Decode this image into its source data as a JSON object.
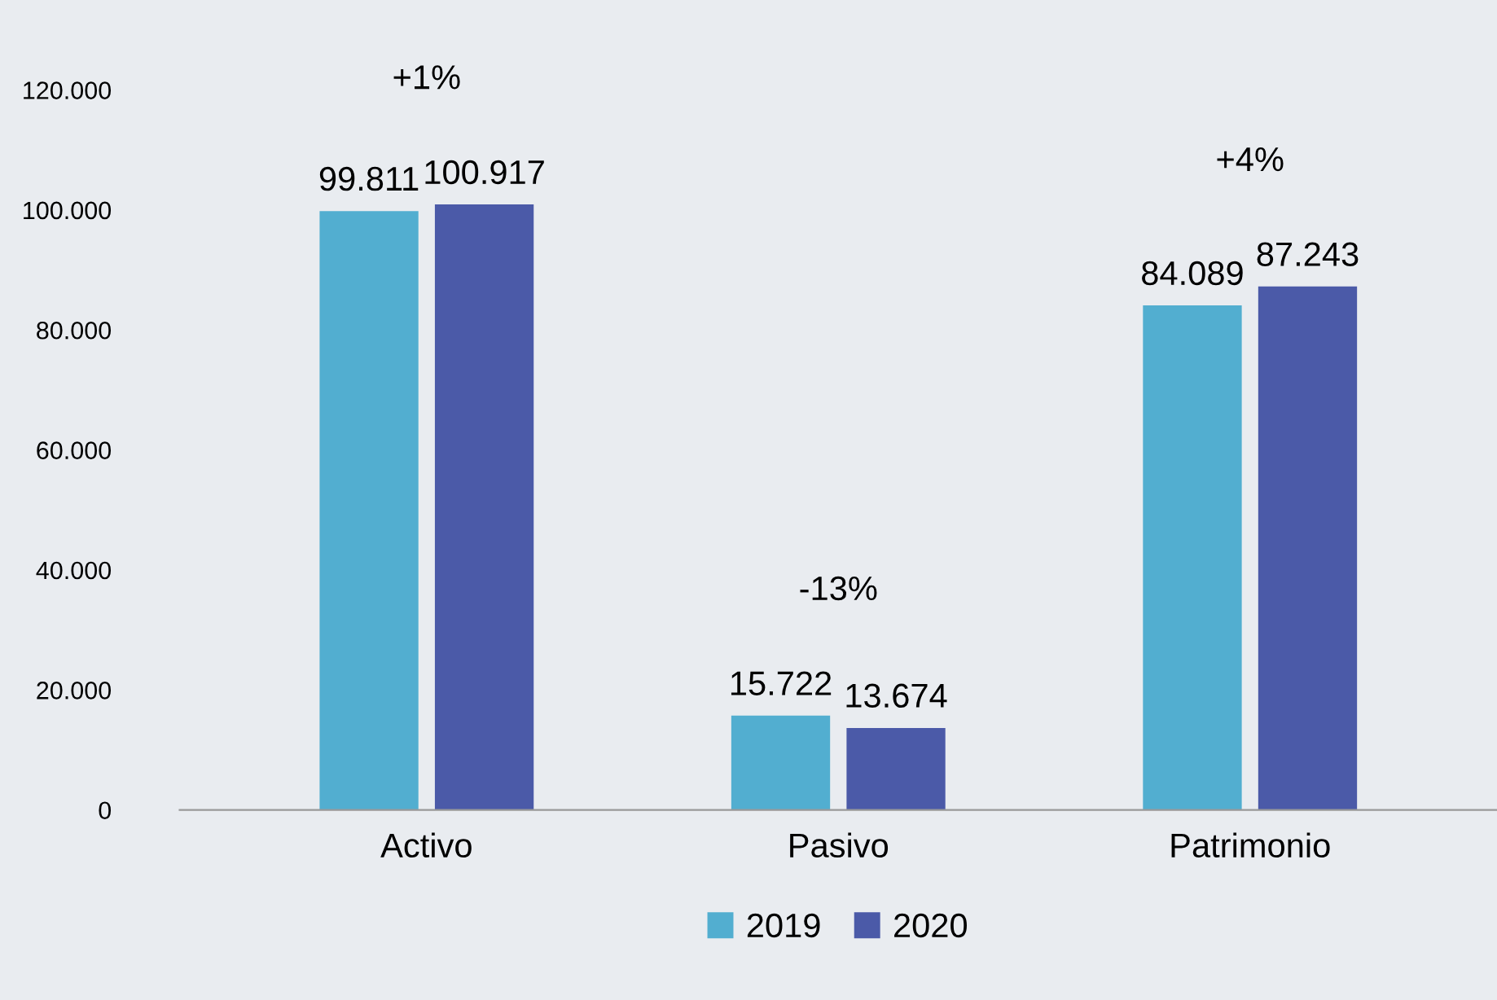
{
  "chart_data": {
    "type": "bar",
    "categories": [
      "Activo",
      "Pasivo",
      "Patrimonio"
    ],
    "series": [
      {
        "name": "2019",
        "color": "#52aed0",
        "values": [
          99811,
          15722,
          84089
        ],
        "value_labels": [
          "99.811",
          "15.722",
          "84.089"
        ]
      },
      {
        "name": "2020",
        "color": "#4b5aa8",
        "values": [
          100917,
          13674,
          87243
        ],
        "value_labels": [
          "100.917",
          "13.674",
          "87.243"
        ]
      }
    ],
    "ylim": [
      0,
      120000
    ],
    "yticks": [
      {
        "value": 0,
        "label": "0"
      },
      {
        "value": 20000,
        "label": "20.000"
      },
      {
        "value": 40000,
        "label": "40.000"
      },
      {
        "value": 60000,
        "label": "60.000"
      },
      {
        "value": 80000,
        "label": "80.000"
      },
      {
        "value": 100000,
        "label": "100.000"
      },
      {
        "value": 120000,
        "label": "120.000"
      }
    ],
    "annotations": [
      "+1%",
      "-13%",
      "+4%"
    ],
    "grid": false,
    "legend": "bottom"
  }
}
